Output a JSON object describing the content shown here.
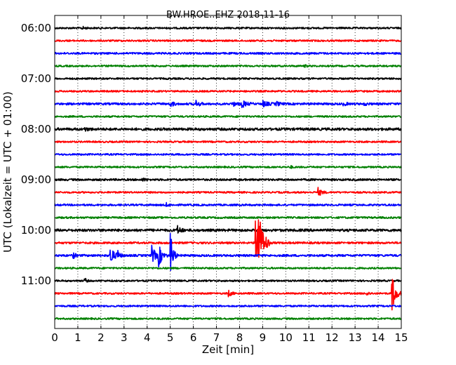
{
  "chart_data": {
    "type": "line",
    "title": "BW.HROE..EHZ 2018-11-16",
    "xlabel": "Zeit  [min]",
    "ylabel": "UTC (Lokalzeit = UTC + 01:00)",
    "xlim": [
      0,
      15
    ],
    "x_ticks": [
      "0",
      "1",
      "2",
      "3",
      "4",
      "5",
      "6",
      "7",
      "8",
      "9",
      "10",
      "11",
      "12",
      "13",
      "14",
      "15"
    ],
    "y_ticks": [
      "06:00",
      "07:00",
      "08:00",
      "09:00",
      "10:00",
      "11:00"
    ],
    "grid": true,
    "trace_interval_min": 15,
    "colors": [
      "#000000",
      "#ff0000",
      "#0000ff",
      "#008000"
    ],
    "traces": [
      {
        "start": "06:00",
        "color": "#000000",
        "noise": 1.2,
        "events": [
          {
            "t": 1.2,
            "amp": 2,
            "dur": 0.3
          }
        ]
      },
      {
        "start": "06:15",
        "color": "#ff0000",
        "noise": 1.2,
        "events": []
      },
      {
        "start": "06:30",
        "color": "#0000ff",
        "noise": 1.3,
        "events": []
      },
      {
        "start": "06:45",
        "color": "#008000",
        "noise": 1.2,
        "events": [
          {
            "t": 10.8,
            "amp": 2,
            "dur": 0.2
          }
        ]
      },
      {
        "start": "07:00",
        "color": "#000000",
        "noise": 1.2,
        "events": []
      },
      {
        "start": "07:15",
        "color": "#ff0000",
        "noise": 1.2,
        "events": []
      },
      {
        "start": "07:30",
        "color": "#0000ff",
        "noise": 1.5,
        "events": [
          {
            "t": 5.0,
            "amp": 4,
            "dur": 0.4
          },
          {
            "t": 6.1,
            "amp": 5,
            "dur": 0.4
          },
          {
            "t": 7.7,
            "amp": 3,
            "dur": 0.4
          },
          {
            "t": 8.1,
            "amp": 5,
            "dur": 0.5
          },
          {
            "t": 9.0,
            "amp": 4,
            "dur": 0.6
          },
          {
            "t": 9.6,
            "amp": 3,
            "dur": 0.4
          },
          {
            "t": 12.5,
            "amp": 3,
            "dur": 0.3
          },
          {
            "t": 13.4,
            "amp": 2,
            "dur": 0.3
          }
        ]
      },
      {
        "start": "07:45",
        "color": "#008000",
        "noise": 1.2,
        "events": []
      },
      {
        "start": "08:00",
        "color": "#000000",
        "noise": 1.8,
        "events": [
          {
            "t": 1.3,
            "amp": 2,
            "dur": 0.5
          }
        ]
      },
      {
        "start": "08:15",
        "color": "#ff0000",
        "noise": 1.2,
        "events": []
      },
      {
        "start": "08:30",
        "color": "#0000ff",
        "noise": 1.2,
        "events": []
      },
      {
        "start": "08:45",
        "color": "#008000",
        "noise": 1.2,
        "events": [
          {
            "t": 10.2,
            "amp": 2,
            "dur": 0.2
          }
        ]
      },
      {
        "start": "09:00",
        "color": "#000000",
        "noise": 1.4,
        "events": [
          {
            "t": 3.8,
            "amp": 2,
            "dur": 0.3
          }
        ]
      },
      {
        "start": "09:15",
        "color": "#ff0000",
        "noise": 1.2,
        "events": [
          {
            "t": 11.4,
            "amp": 6,
            "dur": 0.4
          }
        ]
      },
      {
        "start": "09:30",
        "color": "#0000ff",
        "noise": 1.3,
        "events": [
          {
            "t": 4.8,
            "amp": 3,
            "dur": 0.3
          }
        ]
      },
      {
        "start": "09:45",
        "color": "#008000",
        "noise": 1.3,
        "events": []
      },
      {
        "start": "10:00",
        "color": "#000000",
        "noise": 1.8,
        "events": [
          {
            "t": 5.3,
            "amp": 6,
            "dur": 0.4
          }
        ]
      },
      {
        "start": "10:15",
        "color": "#ff0000",
        "noise": 1.4,
        "events": [
          {
            "t": 8.7,
            "amp": 80,
            "dur": 0.6
          }
        ]
      },
      {
        "start": "10:30",
        "color": "#0000ff",
        "noise": 1.5,
        "events": [
          {
            "t": 0.8,
            "amp": 4,
            "dur": 0.3
          },
          {
            "t": 2.4,
            "amp": 15,
            "dur": 0.4
          },
          {
            "t": 2.7,
            "amp": 8,
            "dur": 0.3
          },
          {
            "t": 4.2,
            "amp": 14,
            "dur": 0.4
          },
          {
            "t": 4.5,
            "amp": 15,
            "dur": 0.4
          },
          {
            "t": 5.0,
            "amp": 36,
            "dur": 0.3
          }
        ]
      },
      {
        "start": "10:45",
        "color": "#008000",
        "noise": 1.2,
        "events": []
      },
      {
        "start": "11:00",
        "color": "#000000",
        "noise": 1.2,
        "events": [
          {
            "t": 1.3,
            "amp": 4,
            "dur": 0.2
          }
        ]
      },
      {
        "start": "11:15",
        "color": "#ff0000",
        "noise": 1.2,
        "events": [
          {
            "t": 7.5,
            "amp": 5,
            "dur": 0.4
          },
          {
            "t": 13.5,
            "amp": 3,
            "dur": 0.3
          },
          {
            "t": 14.6,
            "amp": 28,
            "dur": 0.4
          }
        ]
      },
      {
        "start": "11:30",
        "color": "#0000ff",
        "noise": 1.2,
        "events": []
      },
      {
        "start": "11:45",
        "color": "#008000",
        "noise": 1.2,
        "events": []
      }
    ]
  }
}
